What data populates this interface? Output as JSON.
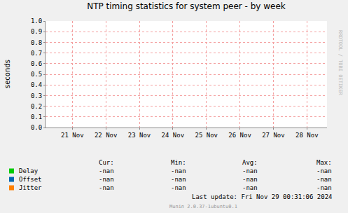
{
  "chart_data": {
    "type": "line",
    "title": "NTP timing statistics for system peer - by week",
    "y_label": "seconds",
    "categories": [
      "21 Nov",
      "22 Nov",
      "23 Nov",
      "24 Nov",
      "25 Nov",
      "26 Nov",
      "27 Nov",
      "28 Nov"
    ],
    "series": [
      {
        "name": "Delay",
        "color": "#00cc00",
        "values": [
          null,
          null,
          null,
          null,
          null,
          null,
          null,
          null
        ],
        "stats": [
          "-nan",
          "-nan",
          "-nan",
          "-nan"
        ]
      },
      {
        "name": "Offset",
        "color": "#0066b3",
        "values": [
          null,
          null,
          null,
          null,
          null,
          null,
          null,
          null
        ],
        "stats": [
          "-nan",
          "-nan",
          "-nan",
          "-nan"
        ]
      },
      {
        "name": "Jitter",
        "color": "#ff8000",
        "values": [
          null,
          null,
          null,
          null,
          null,
          null,
          null,
          null
        ],
        "stats": [
          "-nan",
          "-nan",
          "-nan",
          "-nan"
        ]
      }
    ],
    "stats_columns": [
      "Cur:",
      "Min:",
      "Avg:",
      "Max:"
    ],
    "ylim": [
      0,
      1
    ],
    "yticks": [
      {
        "value": 0,
        "label": "0.0"
      },
      0.1,
      0.2,
      0.3,
      0.4,
      0.5,
      0.6,
      0.7,
      0.8,
      0.9,
      {
        "value": 1,
        "label": "1.0"
      }
    ],
    "grid": true,
    "annotations": [
      "Last update: Fri Nov 29 00:31:06 2024",
      "Munin 2.0.37-1ubuntu0.1",
      "RRDTOOL / TOBI OETIKER"
    ]
  }
}
